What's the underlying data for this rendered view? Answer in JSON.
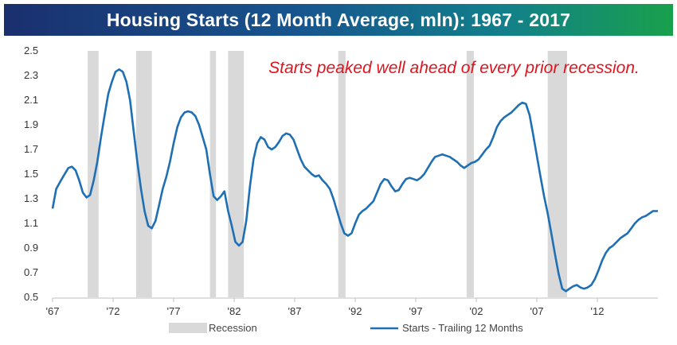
{
  "header": {
    "title": "Housing Starts (12 Month Average, mln): 1967 - 2017"
  },
  "colors": {
    "line": "#1f6fb4",
    "recession": "#d9d9d9",
    "annotation": "#e0141e"
  },
  "chart_data": {
    "type": "line",
    "title": "Housing Starts (12 Month Average, mln): 1967 - 2017",
    "annotation": "Starts peaked well ahead of every prior recession.",
    "xlabel": "",
    "ylabel": "",
    "xlim": [
      1967.0,
      2017.0
    ],
    "ylim": [
      0.5,
      2.5
    ],
    "yticks": [
      "2.5",
      "2.3",
      "2.1",
      "1.9",
      "1.7",
      "1.5",
      "1.3",
      "1.1",
      "0.9",
      "0.7",
      "0.5"
    ],
    "xticks": [
      {
        "label": "'67",
        "x": 1967
      },
      {
        "label": "'72",
        "x": 1972
      },
      {
        "label": "'77",
        "x": 1977
      },
      {
        "label": "'82",
        "x": 1982
      },
      {
        "label": "'87",
        "x": 1987
      },
      {
        "label": "'92",
        "x": 1992
      },
      {
        "label": "'97",
        "x": 1997
      },
      {
        "label": "'02",
        "x": 2002
      },
      {
        "label": "'07",
        "x": 2007
      },
      {
        "label": "'12",
        "x": 2012
      }
    ],
    "grid": false,
    "legend": {
      "placement": "bottom",
      "entries": [
        "Recession",
        "Starts - Trailing 12 Months"
      ]
    },
    "recessions": [
      [
        1969.9,
        1970.8
      ],
      [
        1973.9,
        1975.2
      ],
      [
        1980.0,
        1980.5
      ],
      [
        1981.5,
        1982.8
      ],
      [
        1990.6,
        1991.2
      ],
      [
        2001.2,
        2001.8
      ],
      [
        2007.9,
        2009.5
      ]
    ],
    "series": [
      {
        "name": "Starts - Trailing 12 Months",
        "points": [
          [
            1967.0,
            1.22
          ],
          [
            1967.3,
            1.38
          ],
          [
            1967.7,
            1.45
          ],
          [
            1968.0,
            1.5
          ],
          [
            1968.3,
            1.55
          ],
          [
            1968.6,
            1.56
          ],
          [
            1968.9,
            1.53
          ],
          [
            1969.2,
            1.45
          ],
          [
            1969.5,
            1.35
          ],
          [
            1969.8,
            1.31
          ],
          [
            1970.1,
            1.33
          ],
          [
            1970.4,
            1.45
          ],
          [
            1970.7,
            1.6
          ],
          [
            1971.0,
            1.8
          ],
          [
            1971.3,
            1.98
          ],
          [
            1971.6,
            2.15
          ],
          [
            1971.9,
            2.25
          ],
          [
            1972.2,
            2.33
          ],
          [
            1972.5,
            2.35
          ],
          [
            1972.8,
            2.33
          ],
          [
            1973.1,
            2.25
          ],
          [
            1973.4,
            2.1
          ],
          [
            1973.7,
            1.85
          ],
          [
            1974.0,
            1.6
          ],
          [
            1974.3,
            1.38
          ],
          [
            1974.6,
            1.2
          ],
          [
            1974.9,
            1.08
          ],
          [
            1975.2,
            1.06
          ],
          [
            1975.5,
            1.12
          ],
          [
            1975.8,
            1.25
          ],
          [
            1976.1,
            1.38
          ],
          [
            1976.4,
            1.48
          ],
          [
            1976.7,
            1.6
          ],
          [
            1977.0,
            1.75
          ],
          [
            1977.3,
            1.88
          ],
          [
            1977.6,
            1.96
          ],
          [
            1977.9,
            2.0
          ],
          [
            1978.2,
            2.01
          ],
          [
            1978.5,
            2.0
          ],
          [
            1978.8,
            1.97
          ],
          [
            1979.1,
            1.9
          ],
          [
            1979.4,
            1.8
          ],
          [
            1979.7,
            1.7
          ],
          [
            1980.0,
            1.5
          ],
          [
            1980.3,
            1.32
          ],
          [
            1980.6,
            1.29
          ],
          [
            1980.9,
            1.32
          ],
          [
            1981.2,
            1.36
          ],
          [
            1981.5,
            1.2
          ],
          [
            1981.8,
            1.08
          ],
          [
            1982.1,
            0.95
          ],
          [
            1982.4,
            0.92
          ],
          [
            1982.7,
            0.95
          ],
          [
            1983.0,
            1.12
          ],
          [
            1983.3,
            1.4
          ],
          [
            1983.6,
            1.62
          ],
          [
            1983.9,
            1.75
          ],
          [
            1984.2,
            1.8
          ],
          [
            1984.5,
            1.78
          ],
          [
            1984.8,
            1.72
          ],
          [
            1985.1,
            1.7
          ],
          [
            1985.4,
            1.72
          ],
          [
            1985.7,
            1.76
          ],
          [
            1986.0,
            1.81
          ],
          [
            1986.3,
            1.83
          ],
          [
            1986.6,
            1.82
          ],
          [
            1986.9,
            1.78
          ],
          [
            1987.2,
            1.7
          ],
          [
            1987.5,
            1.62
          ],
          [
            1987.8,
            1.56
          ],
          [
            1988.1,
            1.53
          ],
          [
            1988.4,
            1.5
          ],
          [
            1988.7,
            1.48
          ],
          [
            1989.0,
            1.49
          ],
          [
            1989.3,
            1.45
          ],
          [
            1989.6,
            1.42
          ],
          [
            1989.9,
            1.38
          ],
          [
            1990.2,
            1.3
          ],
          [
            1990.5,
            1.2
          ],
          [
            1990.8,
            1.1
          ],
          [
            1991.1,
            1.02
          ],
          [
            1991.4,
            1.0
          ],
          [
            1991.7,
            1.02
          ],
          [
            1992.0,
            1.1
          ],
          [
            1992.3,
            1.17
          ],
          [
            1992.6,
            1.2
          ],
          [
            1992.9,
            1.22
          ],
          [
            1993.2,
            1.25
          ],
          [
            1993.5,
            1.28
          ],
          [
            1993.8,
            1.35
          ],
          [
            1994.1,
            1.42
          ],
          [
            1994.4,
            1.46
          ],
          [
            1994.7,
            1.45
          ],
          [
            1995.0,
            1.4
          ],
          [
            1995.3,
            1.36
          ],
          [
            1995.6,
            1.37
          ],
          [
            1995.9,
            1.42
          ],
          [
            1996.2,
            1.46
          ],
          [
            1996.5,
            1.47
          ],
          [
            1996.8,
            1.46
          ],
          [
            1997.1,
            1.45
          ],
          [
            1997.4,
            1.47
          ],
          [
            1997.7,
            1.5
          ],
          [
            1998.0,
            1.55
          ],
          [
            1998.3,
            1.6
          ],
          [
            1998.6,
            1.64
          ],
          [
            1998.9,
            1.65
          ],
          [
            1999.2,
            1.66
          ],
          [
            1999.5,
            1.65
          ],
          [
            1999.8,
            1.64
          ],
          [
            2000.1,
            1.62
          ],
          [
            2000.4,
            1.6
          ],
          [
            2000.7,
            1.57
          ],
          [
            2001.0,
            1.55
          ],
          [
            2001.3,
            1.57
          ],
          [
            2001.6,
            1.59
          ],
          [
            2001.9,
            1.6
          ],
          [
            2002.2,
            1.62
          ],
          [
            2002.5,
            1.66
          ],
          [
            2002.8,
            1.7
          ],
          [
            2003.1,
            1.73
          ],
          [
            2003.4,
            1.8
          ],
          [
            2003.7,
            1.88
          ],
          [
            2004.0,
            1.93
          ],
          [
            2004.3,
            1.96
          ],
          [
            2004.6,
            1.98
          ],
          [
            2004.9,
            2.0
          ],
          [
            2005.2,
            2.03
          ],
          [
            2005.5,
            2.06
          ],
          [
            2005.8,
            2.08
          ],
          [
            2006.1,
            2.07
          ],
          [
            2006.4,
            1.98
          ],
          [
            2006.7,
            1.82
          ],
          [
            2007.0,
            1.65
          ],
          [
            2007.3,
            1.48
          ],
          [
            2007.6,
            1.32
          ],
          [
            2007.9,
            1.18
          ],
          [
            2008.2,
            1.02
          ],
          [
            2008.5,
            0.85
          ],
          [
            2008.8,
            0.69
          ],
          [
            2009.1,
            0.57
          ],
          [
            2009.4,
            0.55
          ],
          [
            2009.7,
            0.57
          ],
          [
            2010.0,
            0.59
          ],
          [
            2010.3,
            0.6
          ],
          [
            2010.6,
            0.58
          ],
          [
            2010.9,
            0.57
          ],
          [
            2011.2,
            0.58
          ],
          [
            2011.5,
            0.6
          ],
          [
            2011.8,
            0.65
          ],
          [
            2012.1,
            0.72
          ],
          [
            2012.4,
            0.8
          ],
          [
            2012.7,
            0.86
          ],
          [
            2013.0,
            0.9
          ],
          [
            2013.3,
            0.92
          ],
          [
            2013.6,
            0.95
          ],
          [
            2013.9,
            0.98
          ],
          [
            2014.2,
            1.0
          ],
          [
            2014.5,
            1.02
          ],
          [
            2014.8,
            1.06
          ],
          [
            2015.1,
            1.1
          ],
          [
            2015.4,
            1.13
          ],
          [
            2015.7,
            1.15
          ],
          [
            2016.0,
            1.16
          ],
          [
            2016.3,
            1.18
          ],
          [
            2016.6,
            1.2
          ],
          [
            2016.9,
            1.2
          ],
          [
            2017.0,
            1.2
          ]
        ]
      }
    ]
  }
}
